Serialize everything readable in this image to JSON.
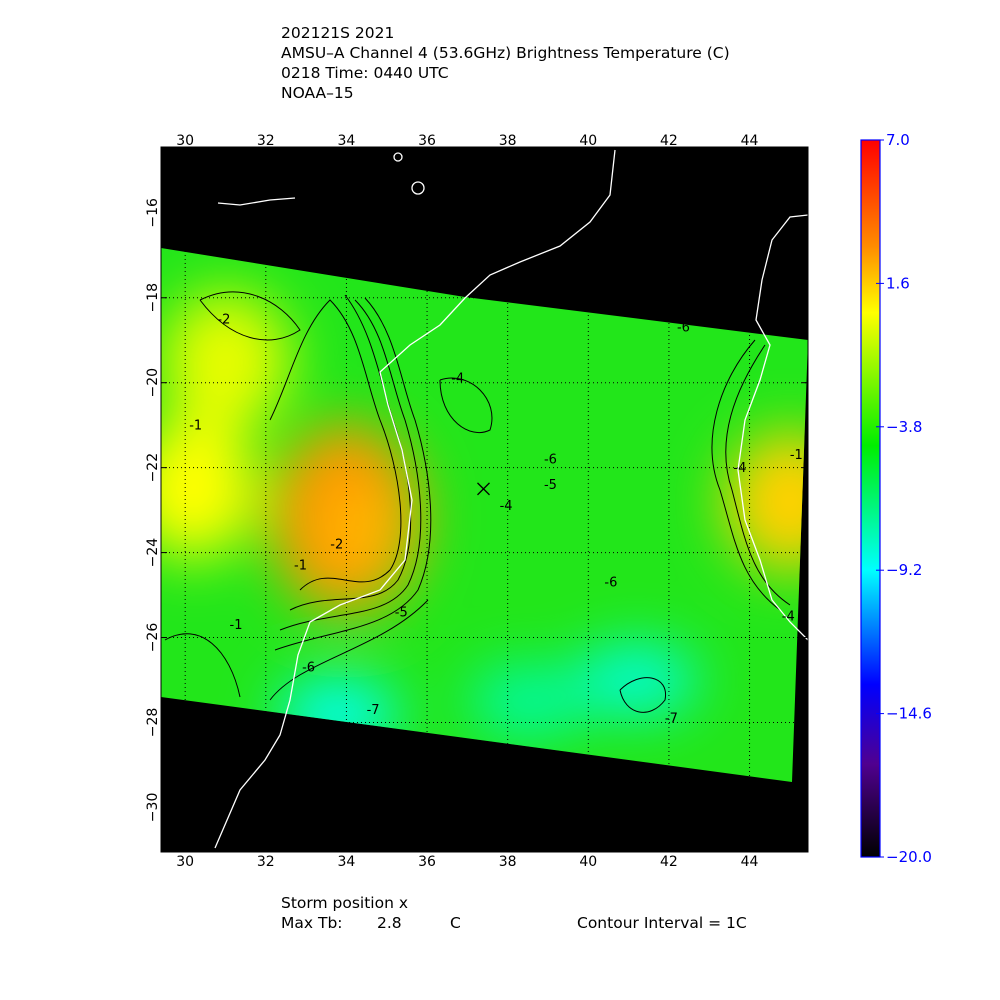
{
  "header": {
    "line1": "202121S 2021",
    "line2": "AMSU–A Channel 4 (53.6GHz) Brightness Temperature (C)",
    "line3": "0218 Time: 0440 UTC",
    "line4": "NOAA–15"
  },
  "footer": {
    "storm_label": "Storm position x",
    "max_tb_label": "Max Tb:",
    "max_tb_value": "2.8",
    "max_tb_unit": "C",
    "contour_interval": "Contour Interval = 1C"
  },
  "chart_data": {
    "type": "heatmap",
    "title": "AMSU–A Channel 4 (53.6GHz) Brightness Temperature (C)",
    "xlim": [
      29.4,
      45.45
    ],
    "ylim": [
      -31.05,
      -14.45
    ],
    "x_ticks": [
      "30",
      "32",
      "34",
      "36",
      "38",
      "40",
      "42",
      "44"
    ],
    "y_ticks": [
      "-16",
      "-18",
      "-20",
      "-22",
      "-24",
      "-26",
      "-28",
      "-30"
    ],
    "grid": true,
    "colorbar": {
      "range": [
        -20.0,
        7.0
      ],
      "tick_labels": [
        "7.0",
        "1.6",
        "−3.8",
        "−9.2",
        "−14.6",
        "−20.0"
      ],
      "tick_color": "#0000ff",
      "stops": [
        {
          "value": 7.0,
          "color": "#ff0000"
        },
        {
          "value": 3.0,
          "color": "#ff8c00"
        },
        {
          "value": 0.5,
          "color": "#ffff00"
        },
        {
          "value": -4.5,
          "color": "#00ee00"
        },
        {
          "value": -9.2,
          "color": "#00ffff"
        },
        {
          "value": -13.5,
          "color": "#0000ff"
        },
        {
          "value": -16.5,
          "color": "#500090"
        },
        {
          "value": -20.0,
          "color": "#000000"
        }
      ]
    },
    "storm_position": {
      "lon": 37.4,
      "lat": -22.5,
      "marker": "x"
    },
    "max_tb": 2.8,
    "contour_interval": 1,
    "contour_labels": [
      {
        "text": "-2",
        "lon": 30.8,
        "lat": -18.6
      },
      {
        "text": "-1",
        "lon": 30.1,
        "lat": -21.1
      },
      {
        "text": "-2",
        "lon": 33.6,
        "lat": -23.9
      },
      {
        "text": "-1",
        "lon": 32.7,
        "lat": -24.4
      },
      {
        "text": "-1",
        "lon": 31.1,
        "lat": -25.8
      },
      {
        "text": "-4",
        "lon": 36.6,
        "lat": -20.0
      },
      {
        "text": "-5",
        "lon": 35.2,
        "lat": -25.5
      },
      {
        "text": "-6",
        "lon": 38.9,
        "lat": -21.9
      },
      {
        "text": "-5",
        "lon": 38.9,
        "lat": -22.5
      },
      {
        "text": "-4",
        "lon": 37.8,
        "lat": -23.0
      },
      {
        "text": "-6",
        "lon": 40.4,
        "lat": -24.8
      },
      {
        "text": "-6",
        "lon": 32.9,
        "lat": -26.8
      },
      {
        "text": "-7",
        "lon": 34.5,
        "lat": -27.8
      },
      {
        "text": "-7",
        "lon": 41.9,
        "lat": -28.0
      },
      {
        "text": "-6",
        "lon": 42.2,
        "lat": -18.8
      },
      {
        "text": "-4",
        "lon": 43.6,
        "lat": -22.1
      },
      {
        "text": "-1",
        "lon": 45.0,
        "lat": -21.8
      },
      {
        "text": "-4",
        "lon": 44.8,
        "lat": -25.6
      }
    ],
    "warm_regions": [
      {
        "lon": 34.0,
        "lat": -23.2,
        "value": 2.8
      },
      {
        "lon": 31.0,
        "lat": -19.5,
        "value": 0.0
      },
      {
        "lon": 30.2,
        "lat": -22.5,
        "value": 0.5
      },
      {
        "lon": 45.0,
        "lat": -22.8,
        "value": 1.5
      }
    ],
    "cool_regions": [
      {
        "lon": 33.8,
        "lat": -27.8,
        "value": -9.0
      },
      {
        "lon": 41.2,
        "lat": -27.0,
        "value": -8.5
      },
      {
        "lon": 38.5,
        "lat": -27.5,
        "value": -7.5
      }
    ]
  }
}
